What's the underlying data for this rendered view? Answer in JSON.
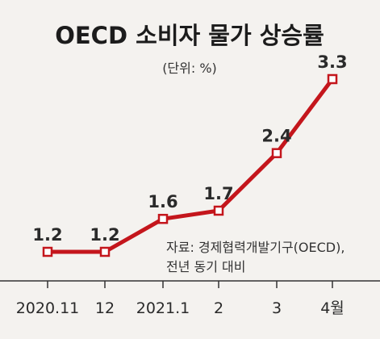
{
  "chart_data": {
    "type": "line",
    "title": "OECD 소비자 물가 상승률",
    "unit_label": "(단위: %)",
    "categories": [
      "2020.11",
      "12",
      "2021.1",
      "2",
      "3",
      "4월"
    ],
    "values": [
      1.2,
      1.2,
      1.6,
      1.7,
      2.4,
      3.3
    ],
    "value_labels": [
      "1.2",
      "1.2",
      "1.6",
      "1.7",
      "2.4",
      "3.3"
    ],
    "ylim": [
      1.2,
      3.3
    ],
    "grid": false,
    "source_lines": [
      "자료: 경제협력개발기구(OECD),",
      "전년 동기 대비"
    ],
    "colors": {
      "line": "#c4161c",
      "marker_fill": "#ffffff",
      "axis": "#333333",
      "background": "#f4f2ef"
    }
  }
}
